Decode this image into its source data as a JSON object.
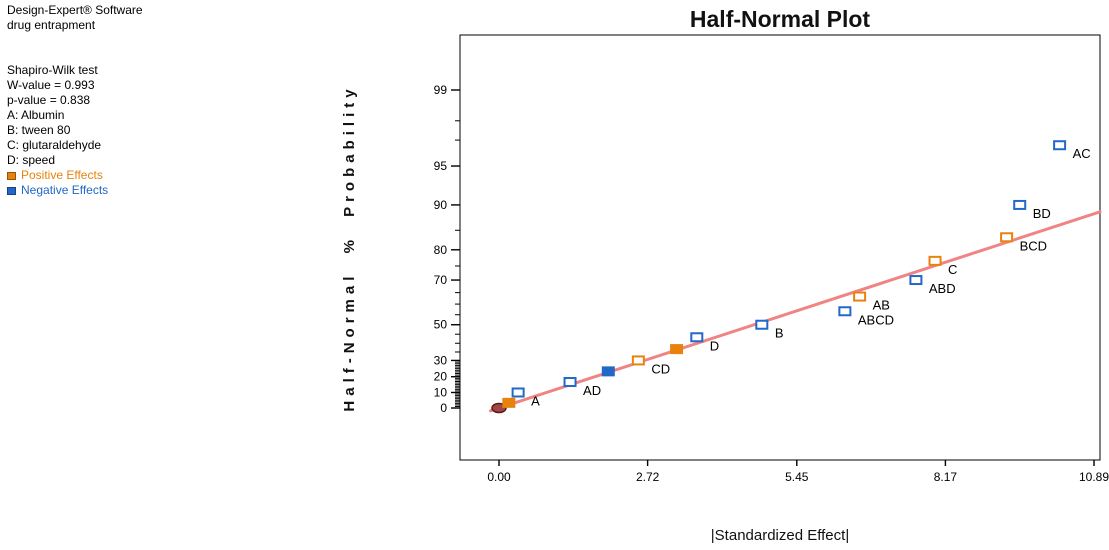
{
  "panel": {
    "title_lines": [
      "Design-Expert® Software",
      "drug entrapment"
    ],
    "info_lines": [
      "Shapiro-Wilk test",
      "W-value = 0.993",
      "p-value = 0.838",
      "A: Albumin",
      "B: tween 80",
      "C: glutaraldehyde",
      "D: speed"
    ],
    "legend": [
      {
        "label": "Positive Effects",
        "color": "#E8820C"
      },
      {
        "label": "Negative Effects",
        "color": "#2268C8"
      }
    ]
  },
  "chart_data": {
    "type": "scatter",
    "title": "Half-Normal Plot",
    "xlabel": "|Standardized Effect|",
    "ylabel": "Half-Normal % Probability",
    "y_scale": "half-normal-probability",
    "xlim": [
      0,
      11.0
    ],
    "ylim_prob": [
      0,
      99
    ],
    "x_ticks": [
      {
        "value": 0,
        "label": "0.00"
      },
      {
        "value": 2.72,
        "label": "2.72"
      },
      {
        "value": 5.45,
        "label": "5.45"
      },
      {
        "value": 8.17,
        "label": "8.17"
      },
      {
        "value": 10.89,
        "label": "10.89"
      }
    ],
    "y_major_ticks": [
      0,
      10,
      20,
      30,
      50,
      70,
      80,
      90,
      95,
      99
    ],
    "y_minor_ticks": [
      1,
      2,
      3,
      4,
      5,
      6,
      7,
      8,
      9,
      11,
      12,
      13,
      14,
      15,
      16,
      17,
      18,
      19,
      21,
      22,
      23,
      24,
      25,
      26,
      27,
      28,
      29,
      35,
      40,
      45,
      55,
      60,
      65,
      75,
      85,
      97,
      98
    ],
    "colors": {
      "positive": "#E8820C",
      "negative": "#2268C8",
      "fit_line": "#F08484",
      "origin_fill": "#A04848",
      "origin_stroke": "#601818"
    },
    "fit_line": {
      "start": {
        "effect": 0,
        "prob": 0
      },
      "end": {
        "effect": 11.0,
        "prob": 88.8
      }
    },
    "origin_marker": {
      "effect": 0.0,
      "prob": 0,
      "shape": "ellipse"
    },
    "points": [
      {
        "term": "",
        "effect": 0.18,
        "probability": 3.33,
        "sign": "positive",
        "filled": true
      },
      {
        "term": "A",
        "effect": 0.35,
        "probability": 10.0,
        "sign": "negative",
        "filled": false
      },
      {
        "term": "AD",
        "effect": 1.3,
        "probability": 16.67,
        "sign": "negative",
        "filled": false
      },
      {
        "term": "",
        "effect": 2.0,
        "probability": 23.33,
        "sign": "negative",
        "filled": true
      },
      {
        "term": "CD",
        "effect": 2.55,
        "probability": 30.0,
        "sign": "positive",
        "filled": false
      },
      {
        "term": "",
        "effect": 3.25,
        "probability": 36.67,
        "sign": "positive",
        "filled": true
      },
      {
        "term": "D",
        "effect": 3.62,
        "probability": 43.33,
        "sign": "negative",
        "filled": false
      },
      {
        "term": "B",
        "effect": 4.81,
        "probability": 50.0,
        "sign": "negative",
        "filled": false
      },
      {
        "term": "ABCD",
        "effect": 6.33,
        "probability": 56.67,
        "sign": "negative",
        "filled": false
      },
      {
        "term": "AB",
        "effect": 6.6,
        "probability": 63.33,
        "sign": "positive",
        "filled": false
      },
      {
        "term": "ABD",
        "effect": 7.63,
        "probability": 70.0,
        "sign": "negative",
        "filled": false
      },
      {
        "term": "C",
        "effect": 7.98,
        "probability": 76.67,
        "sign": "positive",
        "filled": false
      },
      {
        "term": "BCD",
        "effect": 9.29,
        "probability": 83.33,
        "sign": "positive",
        "filled": false
      },
      {
        "term": "BD",
        "effect": 9.53,
        "probability": 90.0,
        "sign": "negative",
        "filled": false
      },
      {
        "term": "AC",
        "effect": 10.26,
        "probability": 96.67,
        "sign": "negative",
        "filled": false
      }
    ]
  }
}
